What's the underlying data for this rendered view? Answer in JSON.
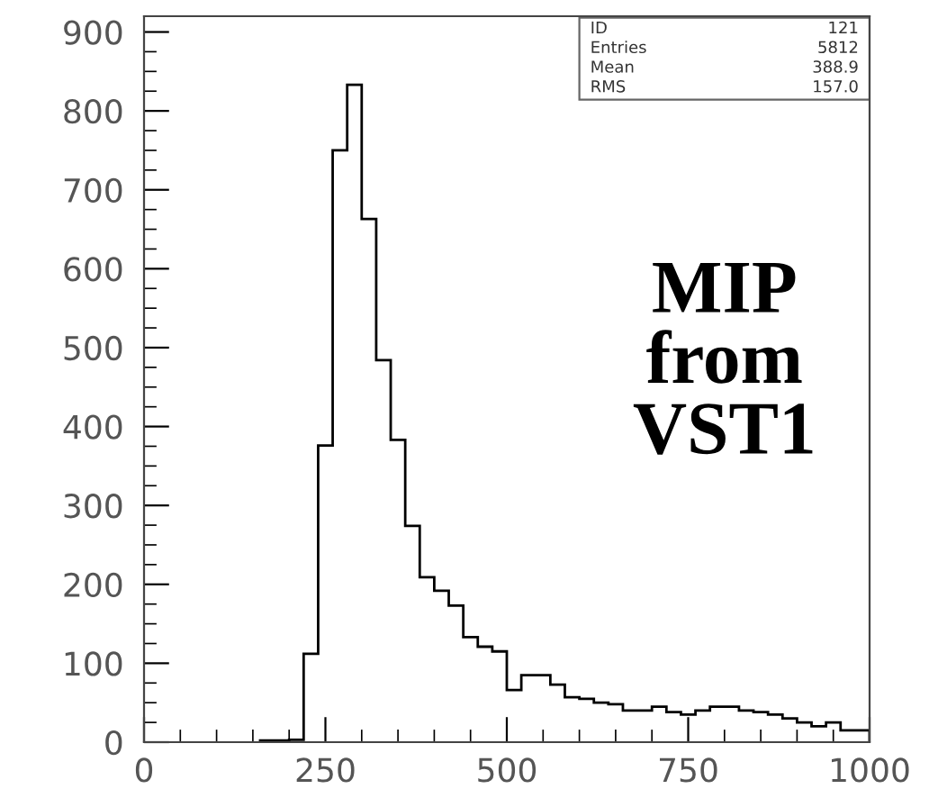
{
  "chart_data": {
    "type": "histogram",
    "bins": [
      160,
      180,
      200,
      220,
      240,
      260,
      280,
      300,
      320,
      340,
      360,
      380,
      400,
      420,
      440,
      460,
      480,
      500,
      520,
      540,
      560,
      580,
      600,
      620,
      640,
      660,
      680,
      700,
      720,
      740,
      760,
      780,
      800,
      820,
      840,
      860,
      880,
      900,
      920,
      940,
      960,
      980,
      1000
    ],
    "values": [
      2,
      2,
      3,
      112,
      376,
      750,
      833,
      663,
      484,
      383,
      274,
      209,
      192,
      173,
      133,
      121,
      115,
      66,
      85,
      85,
      73,
      57,
      55,
      50,
      48,
      40,
      40,
      45,
      38,
      35,
      40,
      45,
      45,
      40,
      38,
      35,
      30,
      25,
      20,
      25,
      15,
      15
    ],
    "color": "#000000",
    "xlim": [
      0,
      1000
    ],
    "xticks": [
      0,
      250,
      500,
      750,
      1000
    ],
    "ylim": [
      0,
      920
    ],
    "yticks": [
      0,
      100,
      200,
      300,
      400,
      500,
      600,
      700,
      800,
      900
    ],
    "grid": false,
    "annotations": [
      "ID",
      "121",
      "Entries",
      "5812",
      "Mean",
      "388.9",
      "RMS",
      "157.0",
      "MIP\nfrom\nVST1"
    ]
  }
}
